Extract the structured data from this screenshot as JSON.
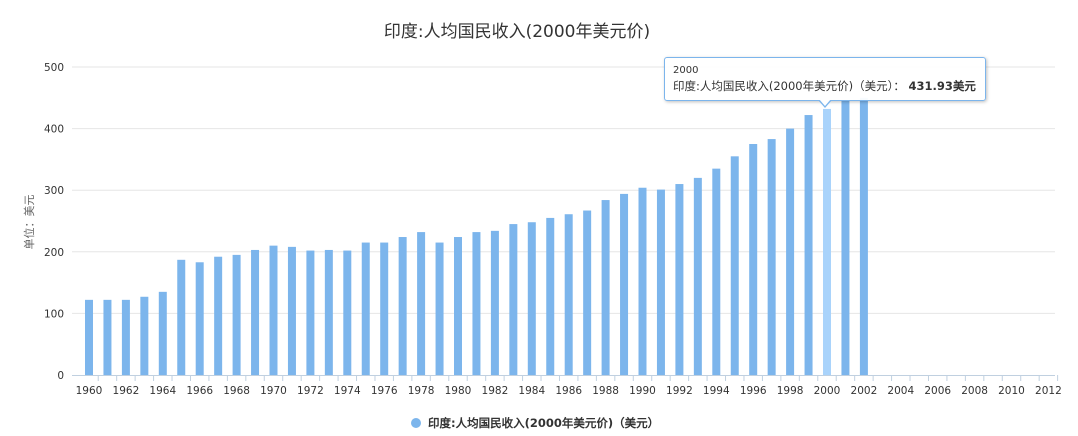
{
  "chart_data": {
    "type": "bar",
    "title": "印度:人均国民收入(2000年美元价)",
    "ylabel": "单位：美元",
    "xlabel": "",
    "ylim": [
      0,
      500
    ],
    "yticks": [
      0,
      100,
      200,
      300,
      400,
      500
    ],
    "xlim": [
      1960,
      2012
    ],
    "xticks": [
      1960,
      1962,
      1964,
      1966,
      1968,
      1970,
      1972,
      1974,
      1976,
      1978,
      1980,
      1982,
      1984,
      1986,
      1988,
      1990,
      1992,
      1994,
      1996,
      1998,
      2000,
      2002,
      2004,
      2006,
      2008,
      2010,
      2012
    ],
    "grid": true,
    "legend_position": "bottom-center",
    "series": [
      {
        "name": "印度:人均国民收入(2000年美元价)（美元）",
        "color": "#7cb5ec",
        "x": [
          1960,
          1961,
          1962,
          1963,
          1964,
          1965,
          1966,
          1967,
          1968,
          1969,
          1970,
          1971,
          1972,
          1973,
          1974,
          1975,
          1976,
          1977,
          1978,
          1979,
          1980,
          1981,
          1982,
          1983,
          1984,
          1985,
          1986,
          1987,
          1988,
          1989,
          1990,
          1991,
          1992,
          1993,
          1994,
          1995,
          1996,
          1997,
          1998,
          1999,
          2000,
          2001,
          2002
        ],
        "values": [
          122,
          122,
          122,
          127,
          135,
          187,
          183,
          192,
          195,
          203,
          210,
          208,
          202,
          203,
          202,
          215,
          215,
          224,
          232,
          215,
          224,
          232,
          234,
          245,
          248,
          255,
          261,
          267,
          284,
          294,
          304,
          301,
          310,
          320,
          335,
          355,
          375,
          383,
          400,
          422,
          431.93,
          445,
          450
        ]
      }
    ],
    "tooltip": {
      "header": "2000",
      "series_label": "印度:人均国民收入(2000年美元价)（美元）：",
      "value": "431.93美元",
      "highlighted_x": 2000
    }
  }
}
